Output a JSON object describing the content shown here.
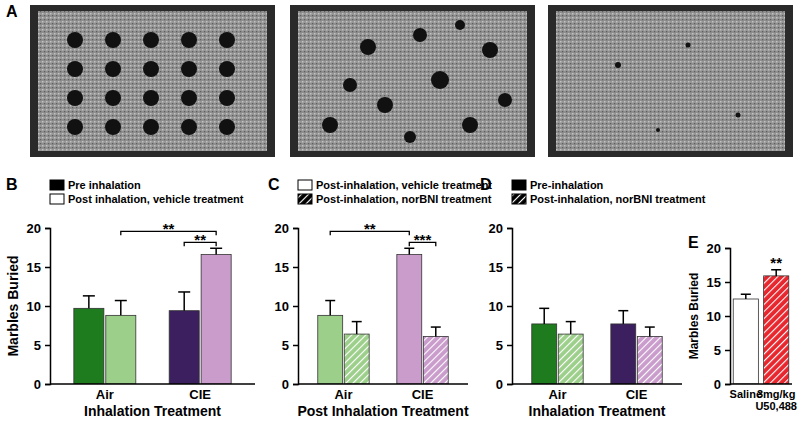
{
  "figure": {
    "photo_panel_label": "A"
  },
  "chart_data": [
    {
      "type": "bar",
      "title": "B",
      "x_label": "Inhalation Treatment",
      "y_label": "Marbles Buried",
      "categories": [
        "Air",
        "CIE"
      ],
      "ylim": [
        0,
        20
      ],
      "yticks": [
        0,
        5,
        10,
        15,
        20
      ],
      "legend": "top-left",
      "series": [
        {
          "name": "Pre inhalation",
          "color": "#000000",
          "line_style": "solid",
          "colors": [
            "#1e7b1e",
            "#3b1f5e"
          ],
          "values": [
            9.7,
            9.4
          ],
          "errors": [
            1.6,
            2.4
          ]
        },
        {
          "name": "Post inhalation, vehicle treatment",
          "color": "#ffffff",
          "line_style": "solid",
          "colors": [
            "#9ccf8a",
            "#c99ccc"
          ],
          "values": [
            8.8,
            16.6
          ],
          "errors": [
            1.9,
            0.8
          ]
        }
      ],
      "annotations": [
        {
          "text": "**",
          "between": [
            [
              0,
              1
            ],
            [
              1,
              1
            ]
          ]
        },
        {
          "text": "**",
          "between": [
            [
              1,
              0
            ],
            [
              1,
              1
            ]
          ]
        }
      ]
    },
    {
      "type": "bar",
      "title": "C",
      "x_label": "Post Inhalation Treatment",
      "categories": [
        "Air",
        "CIE"
      ],
      "ylim": [
        0,
        20
      ],
      "yticks": [
        0,
        5,
        10,
        15,
        20
      ],
      "legend": "top-left",
      "series": [
        {
          "name": "Post-inhalation, vehicle treatment",
          "color": "#ffffff",
          "line_style": "solid",
          "colors": [
            "#9ccf8a",
            "#c99ccc"
          ],
          "values": [
            8.8,
            16.6
          ],
          "errors": [
            1.9,
            0.8
          ]
        },
        {
          "name": "Post-inhalation, norBNI treatment",
          "color": "#000000",
          "line_style": "hatched",
          "colors": [
            "#9ccf8a",
            "#c99ccc"
          ],
          "values": [
            6.4,
            6.1
          ],
          "errors": [
            1.6,
            1.2
          ]
        }
      ],
      "annotations": [
        {
          "text": "***",
          "between": [
            [
              0,
              1
            ],
            [
              1,
              1
            ]
          ]
        },
        {
          "text": "**",
          "between": [
            [
              0,
              0
            ],
            [
              0,
              1
            ]
          ]
        }
      ]
    },
    {
      "type": "bar",
      "title": "D",
      "x_label": "Inhalation Treatment",
      "categories": [
        "Air",
        "CIE"
      ],
      "ylim": [
        0,
        20
      ],
      "yticks": [
        0,
        5,
        10,
        15,
        20
      ],
      "legend": "top-left",
      "series": [
        {
          "name": "Pre-inhalation",
          "color": "#000000",
          "line_style": "solid",
          "colors": [
            "#1e7b1e",
            "#3b1f5e"
          ],
          "values": [
            7.7,
            7.7
          ],
          "errors": [
            2.0,
            1.7
          ]
        },
        {
          "name": "Post-inhalation, norBNI treatment",
          "color": "#000000",
          "line_style": "hatched",
          "colors": [
            "#9ccf8a",
            "#c99ccc"
          ],
          "values": [
            6.4,
            6.1
          ],
          "errors": [
            1.6,
            1.2
          ]
        }
      ]
    },
    {
      "type": "bar",
      "title": "E",
      "y_label": "Marbles Buried",
      "categories": [
        "Saline",
        "3mg/kg U50,488"
      ],
      "ylim": [
        0,
        20
      ],
      "yticks": [
        0,
        5,
        10,
        15,
        20
      ],
      "values": [
        12.5,
        15.9
      ],
      "errors": [
        0.7,
        0.9
      ],
      "colors": [
        "#ffffff",
        "#e8262e"
      ],
      "line_style": "hatched",
      "annotations": [
        {
          "text": "**",
          "between": [
            [
              0,
              1
            ]
          ]
        }
      ]
    }
  ]
}
